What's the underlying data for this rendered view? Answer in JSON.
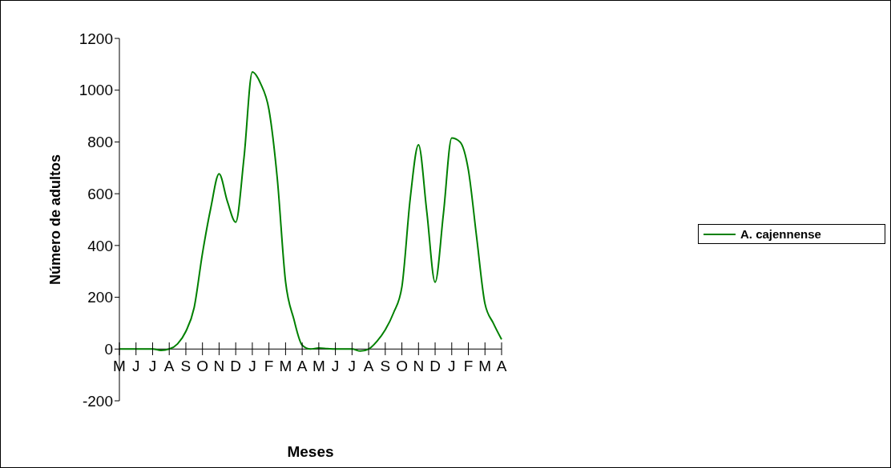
{
  "chart_data": {
    "type": "line",
    "xlabel": "Meses",
    "ylabel": "Número de adultos",
    "categories": [
      "M",
      null,
      "J",
      null,
      "J",
      null,
      "A",
      null,
      "S",
      null,
      "O",
      null,
      "N",
      null,
      "D",
      null,
      "J",
      null,
      "F",
      null,
      "M",
      null,
      "A",
      null,
      "M",
      null,
      "J",
      null,
      "J",
      null,
      "A",
      null,
      "S",
      null,
      "O",
      null,
      "N",
      null,
      "D",
      null,
      "J",
      null,
      "F",
      null,
      "M",
      null,
      "A"
    ],
    "series": [
      {
        "name": "A. cajennense",
        "color": "#008000",
        "values": [
          0,
          0,
          0,
          0,
          0,
          -5,
          0,
          20,
          68,
          160,
          370,
          545,
          677,
          570,
          490,
          740,
          1070,
          1025,
          925,
          660,
          260,
          115,
          15,
          0,
          4,
          2,
          0,
          0,
          0,
          -8,
          0,
          30,
          74,
          140,
          240,
          580,
          789,
          530,
          258,
          523,
          815,
          800,
          692,
          431,
          175,
          100,
          37
        ]
      }
    ],
    "ylim": [
      -200,
      1200
    ],
    "yticks": [
      -200,
      0,
      200,
      400,
      600,
      800,
      1000,
      1200
    ],
    "legend": "right",
    "marker": "none",
    "line_style": "solid"
  }
}
